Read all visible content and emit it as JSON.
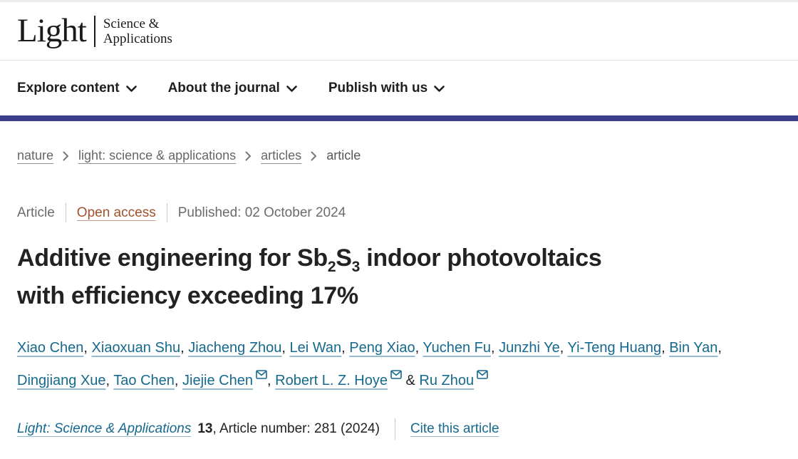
{
  "header": {
    "logo": {
      "primary": "Light",
      "secondary_line1": "Science &",
      "secondary_line2": "Applications"
    }
  },
  "nav": {
    "items": [
      {
        "label": "Explore content",
        "icon": "chevron-down-icon"
      },
      {
        "label": "About the journal",
        "icon": "chevron-down-icon"
      },
      {
        "label": "Publish with us",
        "icon": "chevron-down-icon"
      }
    ]
  },
  "breadcrumb": {
    "separator_icon": "chevron-right-icon",
    "items": [
      {
        "label": "nature",
        "link": true
      },
      {
        "label": "light: science & applications",
        "link": true
      },
      {
        "label": "articles",
        "link": true
      },
      {
        "label": "article",
        "link": false
      }
    ]
  },
  "meta": {
    "type": "Article",
    "access": "Open access",
    "published": "Published: 02 October 2024"
  },
  "title": {
    "plain": "Additive engineering for Sb2S3 indoor photovoltaics with efficiency exceeding 17%",
    "segments": [
      {
        "t": "Additive engineering for Sb"
      },
      {
        "t": "2",
        "sub": true
      },
      {
        "t": "S"
      },
      {
        "t": "3",
        "sub": true
      },
      {
        "t": " indoor photovoltaics"
      },
      {
        "br": true
      },
      {
        "t": "with efficiency exceeding 17%"
      }
    ]
  },
  "authors": [
    {
      "name": "Xiao Chen",
      "email": false
    },
    {
      "name": "Xiaoxuan Shu",
      "email": false
    },
    {
      "name": "Jiacheng Zhou",
      "email": false
    },
    {
      "name": "Lei Wan",
      "email": false
    },
    {
      "name": "Peng Xiao",
      "email": false
    },
    {
      "name": "Yuchen Fu",
      "email": false
    },
    {
      "name": "Junzhi Ye",
      "email": false
    },
    {
      "name": "Yi-Teng Huang",
      "email": false
    },
    {
      "name": "Bin Yan",
      "email": false
    },
    {
      "name": "Dingjiang Xue",
      "email": false
    },
    {
      "name": "Tao Chen",
      "email": false
    },
    {
      "name": "Jiejie Chen",
      "email": true
    },
    {
      "name": "Robert L. Z. Hoye",
      "email": true
    },
    {
      "name": "Ru Zhou",
      "email": true
    }
  ],
  "author_email_icon": "envelope-icon",
  "citation": {
    "journal": "Light: Science & Applications",
    "volume": "13",
    "rest": ", Article number: 281 (2024)",
    "cite_label": "Cite this article"
  },
  "colors": {
    "accent_bar": "#3c3c8c",
    "link_teal": "#15698e",
    "open_access": "#a2512c",
    "text_dark": "#222222",
    "text_gray": "#666666"
  }
}
